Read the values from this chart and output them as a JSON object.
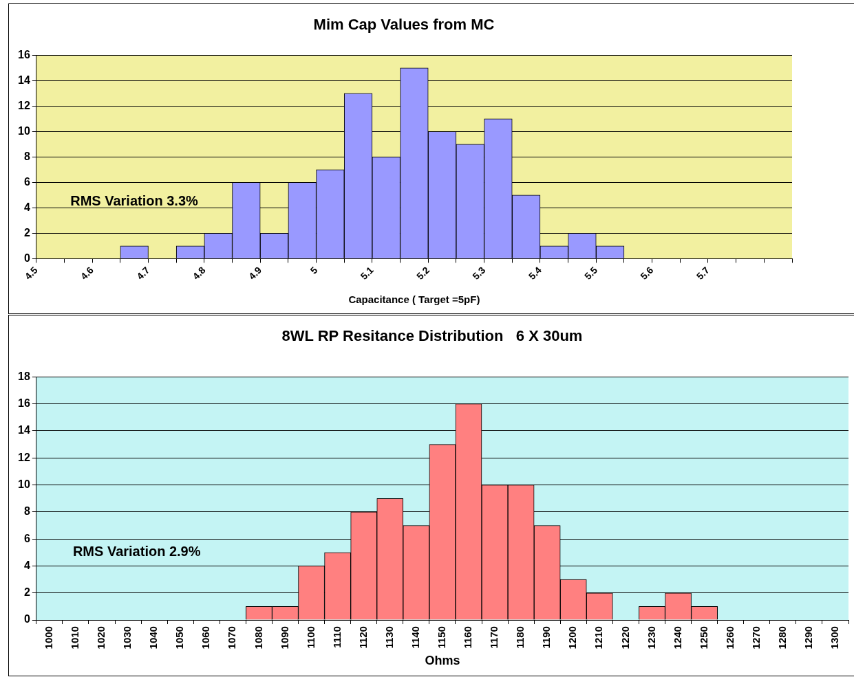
{
  "chart_data": [
    {
      "type": "histogram",
      "title": "Mim Cap Values from MC",
      "xlabel": "Capacitance ( Target =5pF)",
      "bins": [
        4.5,
        4.55,
        4.6,
        4.65,
        4.7,
        4.75,
        4.8,
        4.85,
        4.9,
        4.95,
        5.0,
        5.05,
        5.1,
        5.15,
        5.2,
        5.25,
        5.3,
        5.35,
        5.4,
        5.45,
        5.5,
        5.55,
        5.6,
        5.65,
        5.7,
        5.75,
        5.8,
        5.85
      ],
      "values": [
        0,
        0,
        0,
        1,
        0,
        1,
        2,
        6,
        2,
        6,
        7,
        13,
        8,
        15,
        10,
        9,
        11,
        5,
        1,
        2,
        1,
        0,
        0,
        0,
        0,
        0,
        0
      ],
      "color": "#9999ff",
      "xlim": [
        4.5,
        5.85
      ],
      "xticks": [
        4.5,
        {
          "value": 4.55,
          "label": null
        },
        4.6,
        {
          "value": 4.65,
          "label": null
        },
        4.7,
        {
          "value": 4.75,
          "label": null
        },
        4.8,
        {
          "value": 4.85,
          "label": null
        },
        4.9,
        {
          "value": 4.95,
          "label": null
        },
        {
          "value": 5.0,
          "label": "5"
        },
        {
          "value": 5.05,
          "label": null
        },
        5.1,
        {
          "value": 5.15,
          "label": null
        },
        5.2,
        {
          "value": 5.25,
          "label": null
        },
        5.3,
        {
          "value": 5.35,
          "label": null
        },
        5.4,
        {
          "value": 5.45,
          "label": null
        },
        5.5,
        {
          "value": 5.55,
          "label": null
        },
        5.6,
        {
          "value": 5.65,
          "label": null
        },
        5.7,
        {
          "value": 5.75,
          "label": null
        },
        {
          "value": 5.8,
          "label": null
        },
        {
          "value": 5.85,
          "label": null
        }
      ],
      "ylim": [
        0,
        16
      ],
      "yticks": [
        0,
        2,
        4,
        6,
        8,
        10,
        12,
        14,
        16
      ],
      "grid": "y",
      "legend": false,
      "annotations": [
        "RMS Variation 3.3%"
      ]
    },
    {
      "type": "bar",
      "title": "8WL RP Resitance Distribution   6 X 30um",
      "xlabel": "Ohms",
      "categories": [
        "1000",
        "1010",
        "1020",
        "1030",
        "1040",
        "1050",
        "1060",
        "1070",
        "1080",
        "1090",
        "1100",
        "1110",
        "1120",
        "1130",
        "1140",
        "1150",
        "1160",
        "1170",
        "1180",
        "1190",
        "1200",
        "1210",
        "1220",
        "1230",
        "1240",
        "1250",
        "1260",
        "1270",
        "1280",
        "1290",
        "1300"
      ],
      "values": [
        0,
        0,
        0,
        0,
        0,
        0,
        0,
        0,
        1,
        1,
        4,
        5,
        8,
        9,
        7,
        13,
        16,
        10,
        10,
        7,
        3,
        2,
        0,
        1,
        2,
        1,
        0,
        0,
        0,
        0,
        0
      ],
      "color": "#ff8080",
      "ylim": [
        0,
        18
      ],
      "yticks": [
        0,
        2,
        4,
        6,
        8,
        10,
        12,
        14,
        16,
        18
      ],
      "grid": "y",
      "legend": false,
      "annotations": [
        "RMS Variation 2.9%"
      ]
    }
  ]
}
